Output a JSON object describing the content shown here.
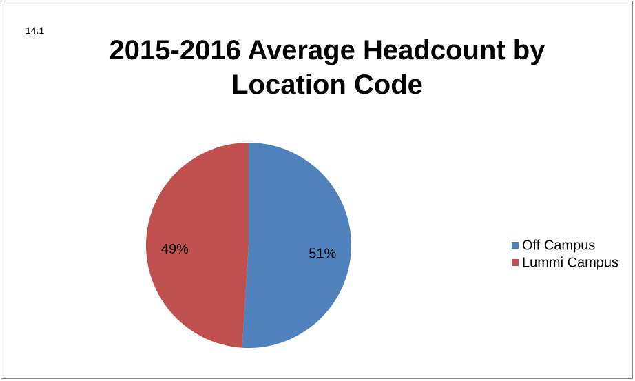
{
  "chart_data": {
    "type": "pie",
    "title": "2015-2016 Average Headcount by Location Code",
    "annotation": "14.1",
    "categories": [
      "Off Campus",
      "Lummi Campus"
    ],
    "values": [
      51,
      49
    ],
    "value_labels": [
      "51%",
      "49%"
    ],
    "colors": [
      "#4f81bd",
      "#c0504d"
    ],
    "legend": "right"
  }
}
